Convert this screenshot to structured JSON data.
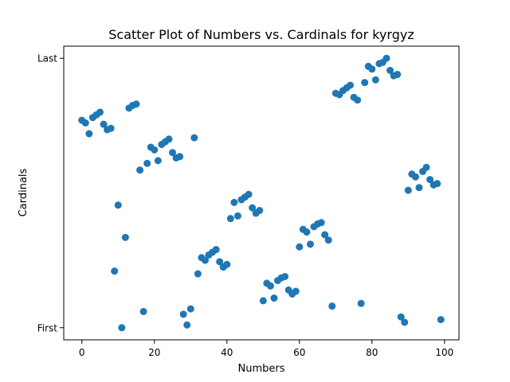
{
  "chart_data": {
    "type": "scatter",
    "title": "Scatter Plot of Numbers vs. Cardinals for kyrgyz",
    "xlabel": "Numbers",
    "ylabel": "Cardinals",
    "xlim": [
      -5,
      104
    ],
    "ylim": [
      -0.045,
      1.045
    ],
    "x_ticks": [
      0,
      20,
      40,
      60,
      80,
      100
    ],
    "y_ticks": [
      {
        "value": 0,
        "label": "First"
      },
      {
        "value": 1,
        "label": "Last"
      }
    ],
    "marker_color": "#1f77b4",
    "grid": false,
    "legend": "none",
    "points": [
      {
        "x": 0,
        "y": 0.77
      },
      {
        "x": 1,
        "y": 0.76
      },
      {
        "x": 2,
        "y": 0.72
      },
      {
        "x": 3,
        "y": 0.78
      },
      {
        "x": 4,
        "y": 0.79
      },
      {
        "x": 5,
        "y": 0.8
      },
      {
        "x": 6,
        "y": 0.755
      },
      {
        "x": 7,
        "y": 0.735
      },
      {
        "x": 8,
        "y": 0.74
      },
      {
        "x": 9,
        "y": 0.21
      },
      {
        "x": 10,
        "y": 0.455
      },
      {
        "x": 11,
        "y": 0.0
      },
      {
        "x": 12,
        "y": 0.335
      },
      {
        "x": 13,
        "y": 0.815
      },
      {
        "x": 14,
        "y": 0.825
      },
      {
        "x": 15,
        "y": 0.83
      },
      {
        "x": 16,
        "y": 0.585
      },
      {
        "x": 17,
        "y": 0.06
      },
      {
        "x": 18,
        "y": 0.61
      },
      {
        "x": 19,
        "y": 0.67
      },
      {
        "x": 20,
        "y": 0.66
      },
      {
        "x": 21,
        "y": 0.62
      },
      {
        "x": 22,
        "y": 0.68
      },
      {
        "x": 23,
        "y": 0.69
      },
      {
        "x": 24,
        "y": 0.7
      },
      {
        "x": 25,
        "y": 0.65
      },
      {
        "x": 26,
        "y": 0.63
      },
      {
        "x": 27,
        "y": 0.635
      },
      {
        "x": 28,
        "y": 0.05
      },
      {
        "x": 29,
        "y": 0.01
      },
      {
        "x": 30,
        "y": 0.07
      },
      {
        "x": 31,
        "y": 0.705
      },
      {
        "x": 32,
        "y": 0.2
      },
      {
        "x": 33,
        "y": 0.26
      },
      {
        "x": 34,
        "y": 0.25
      },
      {
        "x": 35,
        "y": 0.27
      },
      {
        "x": 36,
        "y": 0.28
      },
      {
        "x": 37,
        "y": 0.29
      },
      {
        "x": 38,
        "y": 0.245
      },
      {
        "x": 39,
        "y": 0.225
      },
      {
        "x": 40,
        "y": 0.235
      },
      {
        "x": 41,
        "y": 0.405
      },
      {
        "x": 42,
        "y": 0.465
      },
      {
        "x": 43,
        "y": 0.415
      },
      {
        "x": 44,
        "y": 0.475
      },
      {
        "x": 45,
        "y": 0.485
      },
      {
        "x": 46,
        "y": 0.495
      },
      {
        "x": 47,
        "y": 0.445
      },
      {
        "x": 48,
        "y": 0.425
      },
      {
        "x": 49,
        "y": 0.435
      },
      {
        "x": 50,
        "y": 0.1
      },
      {
        "x": 51,
        "y": 0.165
      },
      {
        "x": 52,
        "y": 0.155
      },
      {
        "x": 53,
        "y": 0.11
      },
      {
        "x": 54,
        "y": 0.175
      },
      {
        "x": 55,
        "y": 0.185
      },
      {
        "x": 56,
        "y": 0.19
      },
      {
        "x": 57,
        "y": 0.14
      },
      {
        "x": 58,
        "y": 0.125
      },
      {
        "x": 59,
        "y": 0.135
      },
      {
        "x": 60,
        "y": 0.3
      },
      {
        "x": 61,
        "y": 0.365
      },
      {
        "x": 62,
        "y": 0.355
      },
      {
        "x": 63,
        "y": 0.31
      },
      {
        "x": 64,
        "y": 0.375
      },
      {
        "x": 65,
        "y": 0.385
      },
      {
        "x": 66,
        "y": 0.39
      },
      {
        "x": 67,
        "y": 0.345
      },
      {
        "x": 68,
        "y": 0.325
      },
      {
        "x": 69,
        "y": 0.08
      },
      {
        "x": 70,
        "y": 0.87
      },
      {
        "x": 71,
        "y": 0.865
      },
      {
        "x": 72,
        "y": 0.88
      },
      {
        "x": 73,
        "y": 0.89
      },
      {
        "x": 74,
        "y": 0.9
      },
      {
        "x": 75,
        "y": 0.855
      },
      {
        "x": 76,
        "y": 0.845
      },
      {
        "x": 77,
        "y": 0.09
      },
      {
        "x": 78,
        "y": 0.91
      },
      {
        "x": 79,
        "y": 0.97
      },
      {
        "x": 80,
        "y": 0.96
      },
      {
        "x": 81,
        "y": 0.92
      },
      {
        "x": 82,
        "y": 0.98
      },
      {
        "x": 83,
        "y": 0.985
      },
      {
        "x": 84,
        "y": 1.0
      },
      {
        "x": 85,
        "y": 0.955
      },
      {
        "x": 86,
        "y": 0.935
      },
      {
        "x": 87,
        "y": 0.94
      },
      {
        "x": 88,
        "y": 0.04
      },
      {
        "x": 89,
        "y": 0.02
      },
      {
        "x": 90,
        "y": 0.51
      },
      {
        "x": 91,
        "y": 0.57
      },
      {
        "x": 92,
        "y": 0.56
      },
      {
        "x": 93,
        "y": 0.52
      },
      {
        "x": 94,
        "y": 0.58
      },
      {
        "x": 95,
        "y": 0.595
      },
      {
        "x": 96,
        "y": 0.55
      },
      {
        "x": 97,
        "y": 0.53
      },
      {
        "x": 98,
        "y": 0.535
      },
      {
        "x": 99,
        "y": 0.03
      }
    ]
  }
}
